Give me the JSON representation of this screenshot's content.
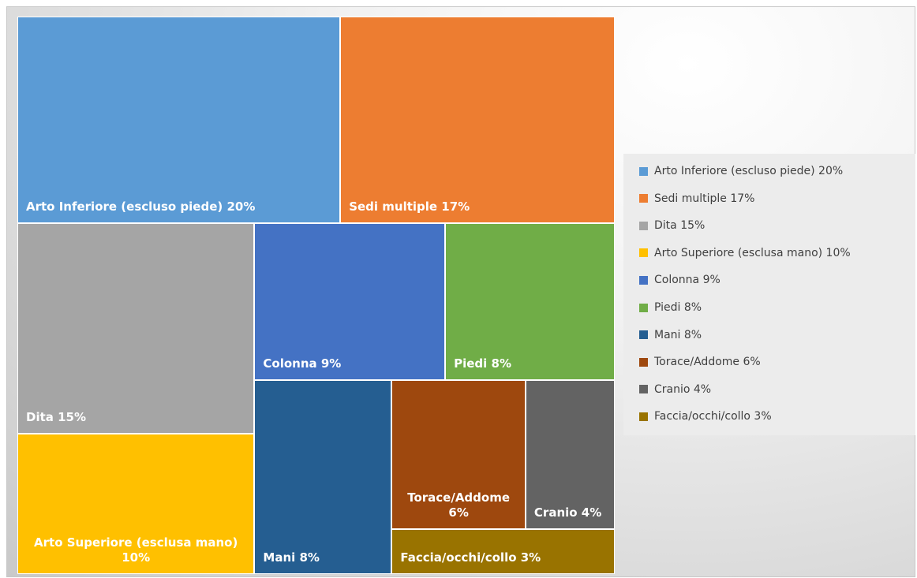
{
  "chart_data": {
    "type": "treemap",
    "categories": [
      "Arto Inferiore (escluso piede) 20%",
      "Sedi multiple 17%",
      "Dita 15%",
      "Arto Superiore (esclusa mano) 10%",
      "Colonna 9%",
      "Piedi 8%",
      "Mani 8%",
      "Torace/Addome 6%",
      "Cranio 4%",
      "Faccia/occhi/collo 3%"
    ],
    "values": [
      20,
      17,
      15,
      10,
      9,
      8,
      8,
      6,
      4,
      3
    ],
    "colors": [
      "#5b9bd5",
      "#ed7d31",
      "#a5a5a5",
      "#ffc000",
      "#4472c4",
      "#70ad47",
      "#255e91",
      "#9e480e",
      "#636363",
      "#997300"
    ],
    "legend": "right"
  }
}
